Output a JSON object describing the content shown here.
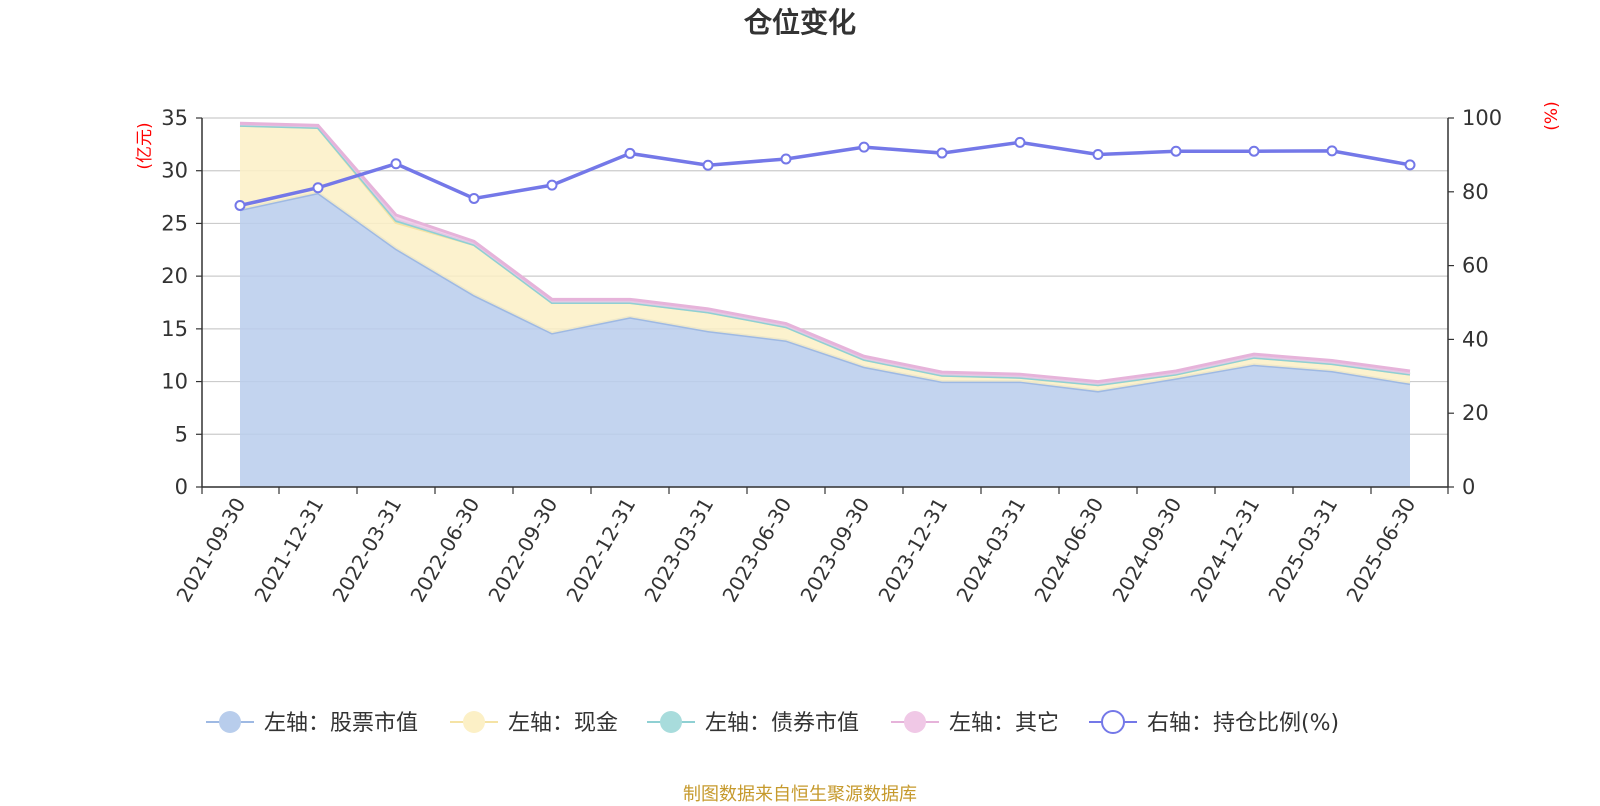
{
  "chart_data": {
    "type": "area",
    "title": "仓位变化",
    "y_left_unit": "(亿元)",
    "y_right_unit": "(%)",
    "y_left_range": [
      0,
      35
    ],
    "y_left_ticks": [
      "0",
      "5",
      "10",
      "15",
      "20",
      "25",
      "30",
      "35"
    ],
    "y_right_range": [
      0,
      100
    ],
    "y_right_ticks": [
      "0",
      "20",
      "40",
      "60",
      "80",
      "100"
    ],
    "grid": true,
    "legend_position": "bottom",
    "categories": [
      "2021-09-30",
      "2021-12-31",
      "2022-03-31",
      "2022-06-30",
      "2022-09-30",
      "2022-12-31",
      "2023-03-31",
      "2023-06-30",
      "2023-09-30",
      "2023-12-31",
      "2024-03-31",
      "2024-06-30",
      "2024-09-30",
      "2024-12-31",
      "2025-03-31",
      "2025-06-30"
    ],
    "stacked_series": [
      {
        "name": "左轴：股票市值",
        "axis": "left",
        "color": "#9eb9e3",
        "fill": "#b8cdec",
        "values": [
          26.3,
          27.9,
          22.6,
          18.2,
          14.6,
          16.1,
          14.8,
          13.9,
          11.4,
          10.0,
          10.0,
          9.1,
          10.3,
          11.6,
          11.0,
          9.8
        ]
      },
      {
        "name": "左轴：现金",
        "axis": "left",
        "color": "#f5e3a5",
        "fill": "#fcf0c6",
        "values": [
          8.0,
          6.2,
          2.5,
          4.8,
          2.9,
          1.4,
          1.8,
          1.3,
          0.7,
          0.6,
          0.4,
          0.6,
          0.4,
          0.7,
          0.7,
          0.9
        ]
      },
      {
        "name": "左轴：债券市值",
        "axis": "left",
        "color": "#8fd0d3",
        "fill": "#a8dcdc",
        "values": [
          0,
          0,
          0.2,
          0,
          0,
          0,
          0,
          0,
          0,
          0,
          0,
          0,
          0,
          0,
          0,
          0
        ]
      },
      {
        "name": "左轴：其它",
        "axis": "left",
        "color": "#e6b3da",
        "fill": "#f0c8e6",
        "values": [
          0.2,
          0.2,
          0.5,
          0.3,
          0.3,
          0.3,
          0.3,
          0.3,
          0.3,
          0.3,
          0.3,
          0.3,
          0.3,
          0.3,
          0.3,
          0.3
        ]
      }
    ],
    "line_series": [
      {
        "name": "右轴：持仓比例(%)",
        "axis": "right",
        "color": "#7478e8",
        "values": [
          76.3,
          81.1,
          87.6,
          78.2,
          81.8,
          90.4,
          87.2,
          88.9,
          92.1,
          90.5,
          93.4,
          90.1,
          91.0,
          91.0,
          91.1,
          87.3
        ]
      }
    ],
    "source": "制图数据来自恒生聚源数据库"
  }
}
